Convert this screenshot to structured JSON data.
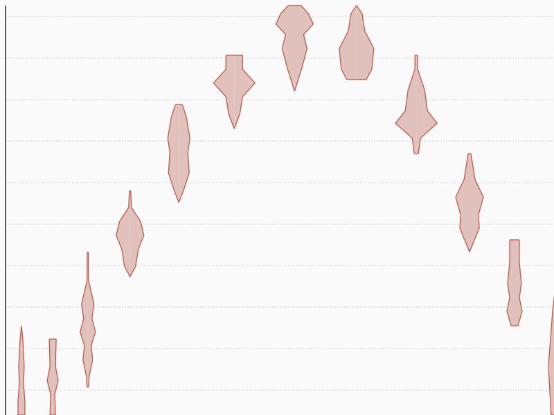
{
  "chart_data": {
    "type": "violin",
    "color": "#e0c1bb",
    "edge_color": "#b85c4d",
    "xlim": [
      0,
      100
    ],
    "ylim": [
      0.4,
      10.4
    ],
    "yticks": [
      1,
      2,
      3,
      4,
      5,
      6,
      7,
      8,
      9,
      10
    ],
    "grid": true,
    "series": [
      {
        "x": 2.9,
        "y": [
          2.55,
          2.23,
          1.57,
          1.15,
          0.73,
          0.4
        ],
        "width": [
          0,
          0.25,
          0.5,
          0.38,
          0.63,
          0.63
        ]
      },
      {
        "x": 8.6,
        "y": [
          2.23,
          1.57,
          1.23,
          0.9,
          0.4
        ],
        "width": [
          0.63,
          0.5,
          1.0,
          0.38,
          0.5
        ]
      },
      {
        "x": 15.0,
        "y": [
          4.32,
          3.65,
          3.07,
          2.73,
          2.4,
          2.07,
          1.73,
          1.32,
          1.07
        ],
        "width": [
          0.1,
          0.13,
          1.14,
          0.76,
          1.39,
          0.63,
          0.88,
          0.25,
          0.13
        ]
      },
      {
        "x": 22.7,
        "y": [
          5.8,
          5.4,
          5.07,
          4.73,
          4.4,
          3.98,
          3.73
        ],
        "width": [
          0.13,
          0.25,
          1.89,
          2.53,
          1.52,
          1.01,
          0
        ]
      },
      {
        "x": 31.6,
        "y": [
          7.88,
          7.57,
          7.07,
          6.73,
          6.23,
          5.82,
          5.52
        ],
        "width": [
          0.63,
          1.39,
          2.02,
          1.64,
          1.89,
          0.88,
          0
        ]
      },
      {
        "x": 41.7,
        "y": [
          9.07,
          8.73,
          8.4,
          8.07,
          7.65,
          7.3
        ],
        "width": [
          1.52,
          1.52,
          3.79,
          1.52,
          1.01,
          0
        ]
      },
      {
        "x": 52.7,
        "y": [
          10.27,
          10.07,
          9.82,
          9.57,
          9.23,
          8.73,
          8.2
        ],
        "width": [
          1.14,
          2.53,
          3.41,
          1.64,
          2.27,
          1.26,
          0
        ]
      },
      {
        "x": 64.0,
        "y": [
          10.27,
          10.07,
          9.65,
          9.23,
          8.73,
          8.48
        ],
        "width": [
          0,
          1.01,
          1.52,
          3.16,
          2.78,
          1.77
        ]
      },
      {
        "x": 74.9,
        "y": [
          9.07,
          8.73,
          8.23,
          7.73,
          7.43,
          7.07,
          6.7
        ],
        "width": [
          0.25,
          0.25,
          1.52,
          2.02,
          3.79,
          0.76,
          0.38
        ]
      },
      {
        "x": 84.6,
        "y": [
          6.7,
          6.07,
          5.65,
          5.23,
          4.9,
          4.33
        ],
        "width": [
          0.25,
          1.01,
          2.53,
          1.64,
          1.77,
          0
        ]
      },
      {
        "x": 92.8,
        "y": [
          4.62,
          4.07,
          3.57,
          3.23,
          2.9,
          2.55
        ],
        "width": [
          0.88,
          0.88,
          1.26,
          0.88,
          1.39,
          0.63
        ]
      },
      {
        "x": 101,
        "y": [
          4.32,
          2.9,
          1.57,
          0.4
        ],
        "width": [
          0,
          1.26,
          2.02,
          1.52
        ]
      }
    ]
  }
}
